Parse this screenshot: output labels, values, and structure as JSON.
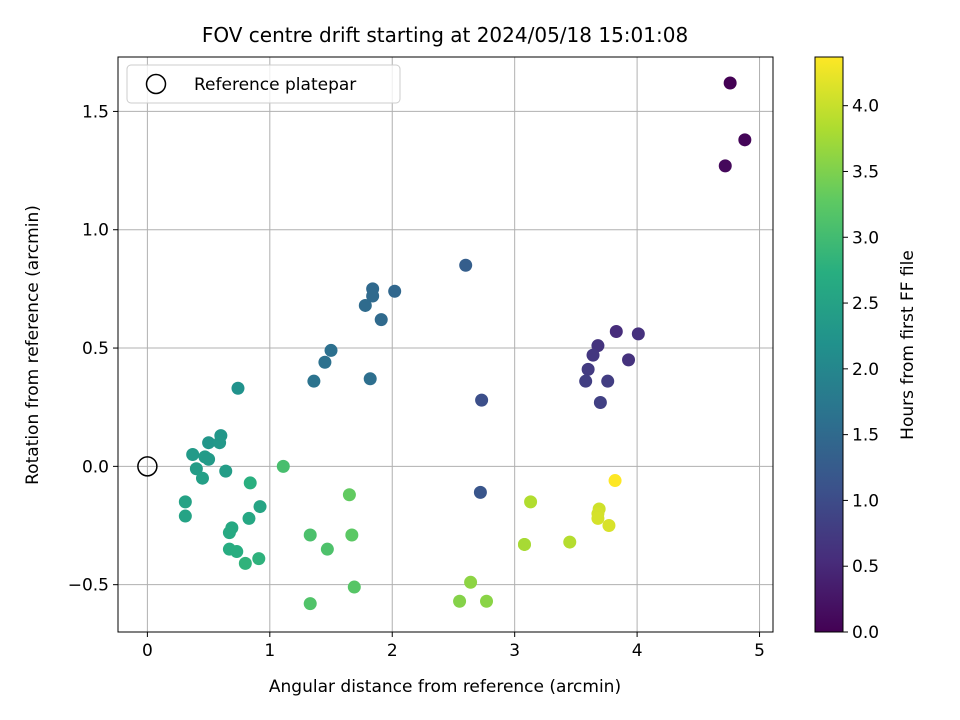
{
  "chart_data": {
    "type": "scatter",
    "title": "FOV centre drift starting at 2024/05/18 15:01:08",
    "xlabel": "Angular distance from reference (arcmin)",
    "ylabel": "Rotation from reference (arcmin)",
    "colorbar_label": "Hours from first FF file",
    "colormap": "viridis",
    "xlim": [
      -0.24,
      5.11
    ],
    "ylim": [
      -0.7,
      1.73
    ],
    "xticks": [
      0,
      1,
      2,
      3,
      4,
      5
    ],
    "yticks": [
      -0.5,
      0.0,
      0.5,
      1.0,
      1.5
    ],
    "xtick_labels": [
      "0",
      "1",
      "2",
      "3",
      "4",
      "5"
    ],
    "ytick_labels": [
      "−0.5",
      "0.0",
      "0.5",
      "1.0",
      "1.5"
    ],
    "clim": [
      0.0,
      4.37
    ],
    "cticks": [
      0.0,
      0.5,
      1.0,
      1.5,
      2.0,
      2.5,
      3.0,
      3.5,
      4.0
    ],
    "ctick_labels": [
      "0.0",
      "0.5",
      "1.0",
      "1.5",
      "2.0",
      "2.5",
      "3.0",
      "3.5",
      "4.0"
    ],
    "grid": true,
    "legend": {
      "position": "top-left",
      "entries": [
        {
          "label": "Reference platepar",
          "marker": "open-circle",
          "x": 0.0,
          "y": 0.0
        }
      ]
    },
    "points": [
      {
        "x": 4.76,
        "y": 1.62,
        "c": 0.0
      },
      {
        "x": 4.88,
        "y": 1.38,
        "c": 0.05
      },
      {
        "x": 4.72,
        "y": 1.27,
        "c": 0.1
      },
      {
        "x": 3.83,
        "y": 0.57,
        "c": 0.55
      },
      {
        "x": 4.01,
        "y": 0.56,
        "c": 0.6
      },
      {
        "x": 3.68,
        "y": 0.51,
        "c": 0.65
      },
      {
        "x": 3.64,
        "y": 0.47,
        "c": 0.7
      },
      {
        "x": 3.93,
        "y": 0.45,
        "c": 0.62
      },
      {
        "x": 3.6,
        "y": 0.41,
        "c": 0.75
      },
      {
        "x": 3.58,
        "y": 0.36,
        "c": 0.8
      },
      {
        "x": 3.76,
        "y": 0.36,
        "c": 0.78
      },
      {
        "x": 3.7,
        "y": 0.27,
        "c": 0.82
      },
      {
        "x": 2.73,
        "y": 0.28,
        "c": 1.05
      },
      {
        "x": 2.72,
        "y": -0.11,
        "c": 1.15
      },
      {
        "x": 2.6,
        "y": 0.85,
        "c": 1.3
      },
      {
        "x": 2.02,
        "y": 0.74,
        "c": 1.45
      },
      {
        "x": 1.84,
        "y": 0.75,
        "c": 1.48
      },
      {
        "x": 1.84,
        "y": 0.72,
        "c": 1.5
      },
      {
        "x": 1.78,
        "y": 0.68,
        "c": 1.52
      },
      {
        "x": 1.91,
        "y": 0.62,
        "c": 1.5
      },
      {
        "x": 1.5,
        "y": 0.49,
        "c": 1.6
      },
      {
        "x": 1.45,
        "y": 0.44,
        "c": 1.62
      },
      {
        "x": 1.82,
        "y": 0.37,
        "c": 1.58
      },
      {
        "x": 1.36,
        "y": 0.36,
        "c": 1.65
      },
      {
        "x": 0.74,
        "y": 0.33,
        "c": 2.2
      },
      {
        "x": 0.6,
        "y": 0.13,
        "c": 2.3
      },
      {
        "x": 0.5,
        "y": 0.1,
        "c": 2.28
      },
      {
        "x": 0.59,
        "y": 0.1,
        "c": 2.32
      },
      {
        "x": 0.37,
        "y": 0.05,
        "c": 2.35
      },
      {
        "x": 0.47,
        "y": 0.04,
        "c": 2.38
      },
      {
        "x": 0.5,
        "y": 0.03,
        "c": 2.36
      },
      {
        "x": 0.4,
        "y": -0.01,
        "c": 2.4
      },
      {
        "x": 0.64,
        "y": -0.02,
        "c": 2.42
      },
      {
        "x": 0.45,
        "y": -0.05,
        "c": 2.45
      },
      {
        "x": 0.84,
        "y": -0.07,
        "c": 2.75
      },
      {
        "x": 0.31,
        "y": -0.15,
        "c": 2.5
      },
      {
        "x": 0.92,
        "y": -0.17,
        "c": 2.55
      },
      {
        "x": 0.31,
        "y": -0.21,
        "c": 2.52
      },
      {
        "x": 0.83,
        "y": -0.22,
        "c": 2.6
      },
      {
        "x": 0.69,
        "y": -0.26,
        "c": 2.62
      },
      {
        "x": 0.67,
        "y": -0.28,
        "c": 2.64
      },
      {
        "x": 0.67,
        "y": -0.35,
        "c": 2.7
      },
      {
        "x": 0.73,
        "y": -0.36,
        "c": 2.72
      },
      {
        "x": 0.91,
        "y": -0.39,
        "c": 2.8
      },
      {
        "x": 0.8,
        "y": -0.41,
        "c": 2.82
      },
      {
        "x": 1.11,
        "y": 0.0,
        "c": 3.05
      },
      {
        "x": 1.33,
        "y": -0.29,
        "c": 3.1
      },
      {
        "x": 1.47,
        "y": -0.35,
        "c": 3.12
      },
      {
        "x": 1.65,
        "y": -0.12,
        "c": 3.3
      },
      {
        "x": 1.67,
        "y": -0.29,
        "c": 3.25
      },
      {
        "x": 1.69,
        "y": -0.51,
        "c": 3.2
      },
      {
        "x": 1.33,
        "y": -0.58,
        "c": 3.15
      },
      {
        "x": 2.55,
        "y": -0.57,
        "c": 3.55
      },
      {
        "x": 2.64,
        "y": -0.49,
        "c": 3.6
      },
      {
        "x": 2.77,
        "y": -0.57,
        "c": 3.58
      },
      {
        "x": 3.13,
        "y": -0.15,
        "c": 3.85
      },
      {
        "x": 3.08,
        "y": -0.33,
        "c": 3.8
      },
      {
        "x": 3.08,
        "y": -0.33,
        "c": 3.78
      },
      {
        "x": 3.45,
        "y": -0.32,
        "c": 3.88
      },
      {
        "x": 3.69,
        "y": -0.18,
        "c": 4.05
      },
      {
        "x": 3.68,
        "y": -0.2,
        "c": 4.08
      },
      {
        "x": 3.68,
        "y": -0.22,
        "c": 4.1
      },
      {
        "x": 3.77,
        "y": -0.25,
        "c": 4.12
      },
      {
        "x": 3.82,
        "y": -0.06,
        "c": 4.37
      }
    ]
  }
}
